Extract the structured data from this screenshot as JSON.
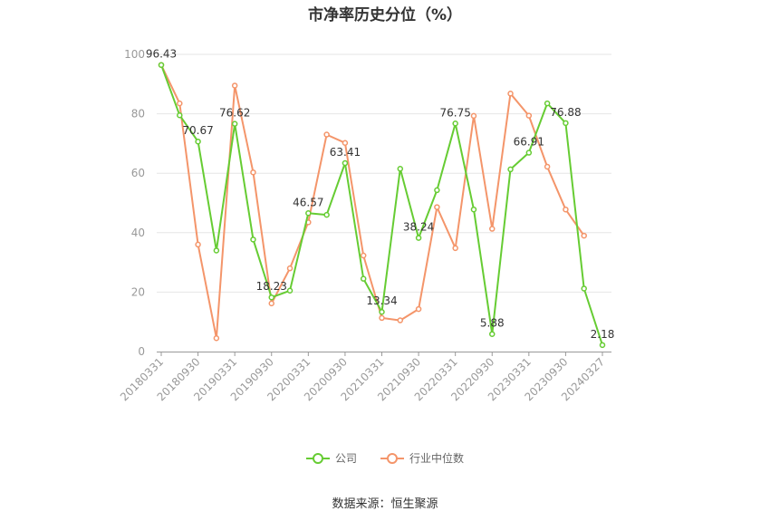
{
  "chart_data": {
    "type": "line",
    "title": "市净率历史分位（%）",
    "ylim": [
      0,
      100
    ],
    "yticks": [
      0,
      20,
      40,
      60,
      80,
      100
    ],
    "x": [
      "20180331",
      "20180630",
      "20180930",
      "20181231",
      "20190331",
      "20190630",
      "20190930",
      "20191231",
      "20200331",
      "20200630",
      "20200930",
      "20201231",
      "20210331",
      "20210630",
      "20210930",
      "20211231",
      "20220331",
      "20220630",
      "20220930",
      "20221231",
      "20230331",
      "20230630",
      "20230930",
      "20231231",
      "20240327"
    ],
    "xtick_labels": [
      "20180331",
      "20180930",
      "20190331",
      "20190930",
      "20200331",
      "20200930",
      "20210331",
      "20210930",
      "20220331",
      "20220930",
      "20230331",
      "20230930",
      "20240327"
    ],
    "series": [
      {
        "name": "公司",
        "color": "#66cc33",
        "values": [
          96.43,
          79.5,
          70.67,
          34,
          76.62,
          37.7,
          18.23,
          20.5,
          46.57,
          46,
          63.41,
          24.5,
          13.34,
          61.5,
          38.24,
          54.3,
          76.75,
          47.8,
          5.88,
          61.3,
          66.91,
          83.5,
          76.88,
          21.2,
          2.18
        ]
      },
      {
        "name": "行业中位数",
        "color": "#f4956a",
        "values": [
          96.43,
          83.5,
          36,
          4.5,
          89.5,
          60.3,
          16.2,
          28,
          43.5,
          73,
          70.2,
          32.3,
          11.3,
          10.5,
          14.3,
          48.6,
          34.8,
          79.3,
          41.3,
          86.8,
          79.4,
          62.2,
          47.8,
          39,
          null
        ]
      }
    ],
    "data_labels": [
      {
        "index": 0,
        "text": "96.43"
      },
      {
        "index": 2,
        "text": "70.67"
      },
      {
        "index": 4,
        "text": "76.62"
      },
      {
        "index": 6,
        "text": "18.23"
      },
      {
        "index": 8,
        "text": "46.57"
      },
      {
        "index": 10,
        "text": "63.41"
      },
      {
        "index": 12,
        "text": "13.34"
      },
      {
        "index": 14,
        "text": "38.24"
      },
      {
        "index": 16,
        "text": "76.75"
      },
      {
        "index": 18,
        "text": "5.88"
      },
      {
        "index": 20,
        "text": "66.91"
      },
      {
        "index": 22,
        "text": "76.88"
      },
      {
        "index": 24,
        "text": "2.18"
      }
    ],
    "legend": [
      "公司",
      "行业中位数"
    ],
    "grid": true,
    "legend_position": "bottom"
  },
  "source": "数据来源：恒生聚源"
}
